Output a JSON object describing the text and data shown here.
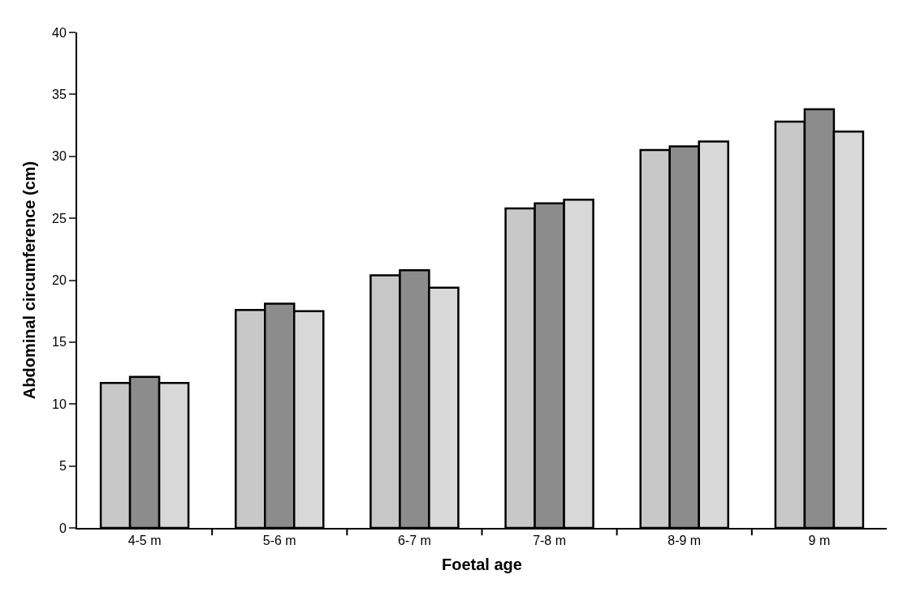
{
  "chart_data": {
    "type": "bar",
    "xlabel": "Foetal age",
    "ylabel": "Abdominal circumference (cm)",
    "categories": [
      "4-5 m",
      "5-6 m",
      "6-7 m",
      "7-8 m",
      "8-9 m",
      "9 m"
    ],
    "series": [
      {
        "color": "#c8c8c8",
        "values": [
          11.7,
          17.6,
          20.4,
          25.8,
          30.5,
          32.8
        ]
      },
      {
        "color": "#8c8c8c",
        "values": [
          12.2,
          18.1,
          20.8,
          26.2,
          30.8,
          33.8
        ]
      },
      {
        "color": "#d8d8d8",
        "values": [
          11.7,
          17.5,
          19.4,
          26.5,
          31.2,
          32.0
        ]
      }
    ],
    "ylim": [
      0,
      40
    ],
    "yticks": [
      0,
      5,
      10,
      15,
      20,
      25,
      30,
      35,
      40
    ]
  }
}
